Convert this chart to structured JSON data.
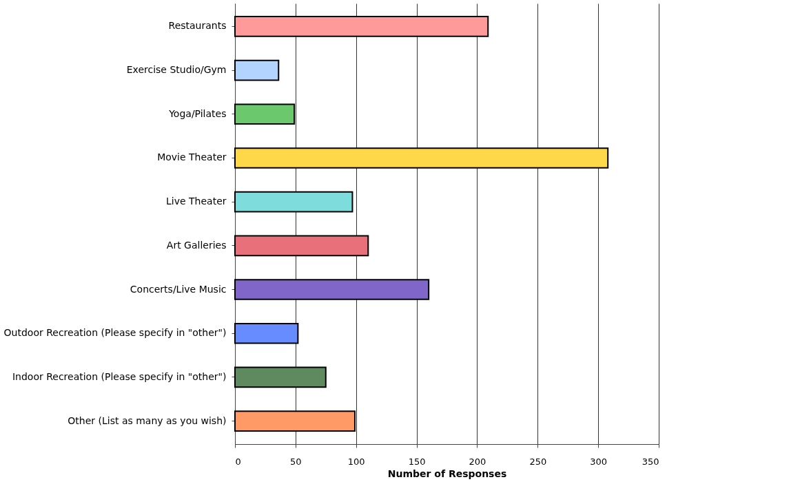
{
  "chart_data": {
    "type": "bar",
    "orientation": "horizontal",
    "xlabel": "Number of Responses",
    "categories": [
      "Restaurants",
      "Exercise Studio/Gym",
      "Yoga/Pilates",
      "Movie Theater",
      "Live Theater",
      "Art Galleries",
      "Concerts/Live Music",
      "Outdoor Recreation (Please specify in \"other\")",
      "Indoor Recreation (Please specify in \"other\")",
      "Other (List as many as you wish)"
    ],
    "values": [
      209,
      36,
      49,
      308,
      97,
      110,
      160,
      52,
      75,
      99
    ],
    "colors": [
      "#ff9a9a",
      "#b3d4ff",
      "#6cc86c",
      "#ffd84a",
      "#7fdcdc",
      "#e8707a",
      "#7f66c8",
      "#668cff",
      "#5f8a5f",
      "#ff9966"
    ],
    "xlim": [
      0,
      350
    ],
    "xticks": [
      0,
      50,
      100,
      150,
      200,
      250,
      300,
      350
    ],
    "grid": "x",
    "legend": false
  }
}
